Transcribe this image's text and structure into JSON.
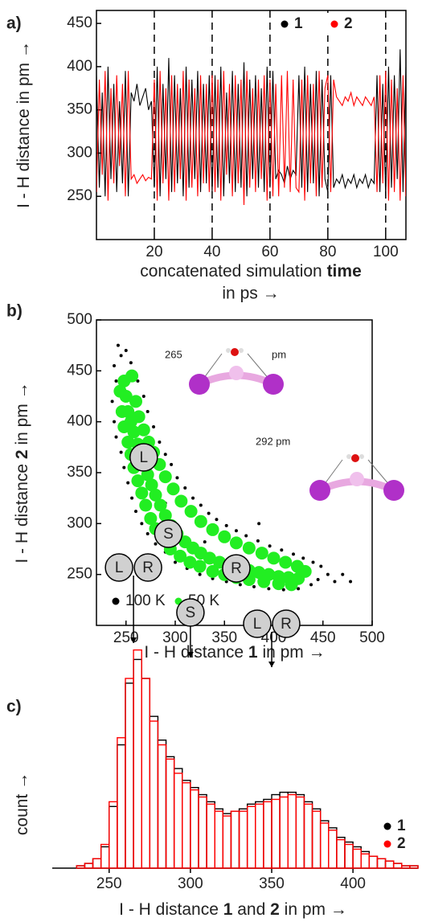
{
  "chart_data": [
    {
      "type": "line",
      "panel_label": "a)",
      "ylabel": [
        {
          "text": "I - H distance in pm →",
          "bold": false
        }
      ],
      "xlabel": [
        {
          "text": "concatenated simulation ",
          "bold": false
        },
        {
          "text": "time",
          "bold": true
        }
      ],
      "xlabel2": "in ps →",
      "xlim": [
        0,
        107
      ],
      "ylim": [
        200,
        465
      ],
      "xticks": [
        20,
        40,
        60,
        80,
        100
      ],
      "yticks": [
        250,
        300,
        350,
        400,
        450
      ],
      "vlines": [
        20,
        40,
        60,
        80,
        100
      ],
      "frame": true,
      "x": [
        0,
        1,
        2,
        3,
        4,
        5,
        6,
        7,
        8,
        9,
        10,
        11,
        12,
        13,
        14,
        15,
        16,
        17,
        18,
        19,
        20,
        21,
        22,
        23,
        24,
        25,
        26,
        27,
        28,
        29,
        30,
        31,
        32,
        33,
        34,
        35,
        36,
        37,
        38,
        39,
        40,
        41,
        42,
        43,
        44,
        45,
        46,
        47,
        48,
        49,
        50,
        51,
        52,
        53,
        54,
        55,
        56,
        57,
        58,
        59,
        60,
        61,
        62,
        63,
        64,
        65,
        66,
        67,
        68,
        69,
        70,
        71,
        72,
        73,
        74,
        75,
        76,
        77,
        78,
        79,
        80,
        81,
        82,
        83,
        84,
        85,
        86,
        87,
        88,
        89,
        90,
        91,
        92,
        93,
        94,
        95,
        96,
        97,
        98,
        99,
        100,
        101,
        102,
        103,
        104,
        105,
        106,
        107
      ],
      "series": [
        {
          "name": "1",
          "color": "#000000",
          "values": [
            390,
            260,
            370,
            250,
            400,
            270,
            380,
            255,
            360,
            265,
            395,
            250,
            370,
            360,
            380,
            355,
            365,
            375,
            350,
            360,
            260,
            400,
            250,
            380,
            270,
            410,
            255,
            390,
            265,
            375,
            250,
            400,
            260,
            385,
            270,
            395,
            255,
            380,
            265,
            390,
            255,
            390,
            260,
            400,
            250,
            370,
            265,
            395,
            255,
            380,
            260,
            405,
            250,
            385,
            270,
            390,
            260,
            375,
            255,
            400,
            260,
            395,
            270,
            280,
            275,
            265,
            285,
            270,
            280,
            275,
            390,
            260,
            400,
            255,
            380,
            265,
            395,
            250,
            385,
            270,
            255,
            390,
            260,
            270,
            265,
            275,
            260,
            270,
            265,
            275,
            260,
            270,
            265,
            275,
            260,
            270,
            265,
            390,
            255,
            380,
            250,
            400,
            260,
            390,
            270,
            420,
            255,
            400
          ]
        },
        {
          "name": "2",
          "color": "#ff0000",
          "values": [
            255,
            385,
            275,
            395,
            245,
            375,
            265,
            390,
            285,
            380,
            250,
            395,
            270,
            275,
            265,
            270,
            275,
            268,
            272,
            270,
            385,
            245,
            395,
            265,
            375,
            245,
            390,
            255,
            380,
            270,
            395,
            245,
            385,
            260,
            375,
            250,
            390,
            265,
            380,
            255,
            390,
            255,
            385,
            245,
            395,
            275,
            380,
            250,
            390,
            265,
            385,
            240,
            395,
            260,
            375,
            255,
            385,
            270,
            390,
            245,
            385,
            250,
            380,
            250,
            390,
            260,
            395,
            255,
            385,
            260,
            255,
            385,
            245,
            390,
            265,
            380,
            250,
            395,
            260,
            375,
            390,
            255,
            385,
            365,
            360,
            355,
            365,
            360,
            370,
            355,
            365,
            360,
            355,
            365,
            360,
            355,
            365,
            255,
            390,
            265,
            395,
            245,
            385,
            255,
            375,
            245,
            390,
            250
          ]
        }
      ]
    },
    {
      "type": "scatter",
      "panel_label": "b)",
      "ylabel": [
        {
          "text": "I - H distance ",
          "bold": false
        },
        {
          "text": "2",
          "bold": true
        },
        {
          "text": " in pm →",
          "bold": false
        }
      ],
      "xlabel": [
        {
          "text": "I - H distance ",
          "bold": false
        },
        {
          "text": "1",
          "bold": true
        },
        {
          "text": " in pm →",
          "bold": false
        }
      ],
      "xlim": [
        220,
        500
      ],
      "ylim": [
        200,
        500
      ],
      "xticks": [
        250,
        300,
        350,
        400,
        450,
        500
      ],
      "yticks": [
        250,
        300,
        350,
        400,
        450,
        500
      ],
      "frame": true,
      "annotations": [
        "265",
        "pm",
        "292 pm"
      ],
      "state_labels": [
        {
          "text": "L",
          "x": 268,
          "y": 365
        },
        {
          "text": "S",
          "x": 293,
          "y": 290
        },
        {
          "text": "R",
          "x": 362,
          "y": 256
        }
      ],
      "series": [
        {
          "name": "100 K",
          "color": "#000000",
          "x": [
            242,
            245,
            250,
            238,
            255,
            240,
            262,
            236,
            268,
            238,
            272,
            240,
            278,
            245,
            284,
            248,
            290,
            252,
            296,
            256,
            302,
            260,
            310,
            266,
            318,
            272,
            326,
            280,
            334,
            290,
            342,
            300,
            352,
            312,
            362,
            325,
            372,
            338,
            384,
            352,
            396,
            366,
            408,
            380,
            420,
            395,
            430,
            410,
            440,
            425,
            448,
            438,
            455,
            445,
            462,
            470,
            478,
            290,
            330,
            385
          ],
          "y": [
            475,
            465,
            470,
            455,
            458,
            440,
            440,
            420,
            425,
            400,
            410,
            385,
            395,
            370,
            380,
            355,
            368,
            340,
            358,
            325,
            345,
            312,
            335,
            300,
            325,
            290,
            318,
            280,
            310,
            272,
            304,
            262,
            298,
            256,
            293,
            250,
            288,
            246,
            283,
            243,
            278,
            240,
            274,
            238,
            270,
            236,
            266,
            235,
            262,
            236,
            258,
            240,
            250,
            245,
            243,
            250,
            243,
            320,
            282,
            300
          ]
        },
        {
          "name": "50 K",
          "color": "#22ee22",
          "x": [
            248,
            250,
            252,
            255,
            258,
            262,
            265,
            268,
            272,
            276,
            280,
            285,
            290,
            296,
            302,
            310,
            318,
            326,
            335,
            345,
            355,
            365,
            375,
            385,
            395,
            405,
            415,
            425,
            244,
            246,
            248,
            252,
            255,
            258,
            262,
            266,
            270,
            275,
            280,
            287,
            295,
            305,
            315,
            325,
            338,
            350,
            362,
            375,
            390,
            405,
            418,
            256,
            260,
            263,
            268,
            273,
            278,
            284,
            290,
            298,
            306,
            316,
            326,
            338,
            350,
            362,
            375,
            388,
            400,
            412,
            424,
            432
          ],
          "y": [
            440,
            425,
            410,
            400,
            390,
            378,
            368,
            358,
            348,
            338,
            328,
            318,
            308,
            298,
            290,
            282,
            276,
            271,
            266,
            262,
            259,
            256,
            254,
            252,
            250,
            248,
            247,
            246,
            430,
            410,
            395,
            380,
            368,
            355,
            342,
            330,
            318,
            305,
            295,
            285,
            275,
            268,
            262,
            258,
            253,
            250,
            247,
            245,
            243,
            241,
            240,
            445,
            420,
            405,
            392,
            380,
            370,
            358,
            346,
            334,
            322,
            312,
            302,
            294,
            287,
            281,
            276,
            271,
            266,
            262,
            258,
            253
          ]
        }
      ]
    },
    {
      "type": "histogram",
      "panel_label": "c)",
      "ylabel": [
        {
          "text": "count →",
          "bold": false
        }
      ],
      "xlabel": [
        {
          "text": "I - H distance ",
          "bold": false
        },
        {
          "text": "1",
          "bold": true
        },
        {
          "text": " and ",
          "bold": false
        },
        {
          "text": "2",
          "bold": true
        },
        {
          "text": " in pm →",
          "bold": false
        }
      ],
      "xlim": [
        215,
        440
      ],
      "ylim": [
        0,
        100
      ],
      "xticks": [
        250,
        300,
        350,
        400
      ],
      "frame": false,
      "markers": [
        {
          "labels": [
            "L",
            "R"
          ],
          "x": 265
        },
        {
          "labels": [
            "S"
          ],
          "x": 300
        },
        {
          "labels": [
            "L",
            "R"
          ],
          "x": 350
        }
      ],
      "bins": [
        230,
        235,
        240,
        245,
        250,
        255,
        260,
        265,
        270,
        275,
        280,
        285,
        290,
        295,
        300,
        305,
        310,
        315,
        320,
        325,
        330,
        335,
        340,
        345,
        350,
        355,
        360,
        365,
        370,
        375,
        380,
        385,
        390,
        395,
        400,
        405,
        410,
        415,
        420,
        425,
        430,
        435,
        440
      ],
      "series": [
        {
          "name": "1",
          "color": "#000000",
          "values": [
            1,
            2,
            4,
            9,
            26,
            52,
            78,
            88,
            80,
            64,
            54,
            47,
            42,
            37,
            34,
            31,
            28,
            25,
            23,
            24,
            25,
            27,
            28,
            29,
            31,
            32,
            32,
            31,
            28,
            25,
            20,
            17,
            13,
            11,
            9,
            7,
            5,
            4,
            3,
            2,
            1,
            1
          ]
        },
        {
          "name": "2",
          "color": "#ff0000",
          "values": [
            1,
            2,
            4,
            10,
            28,
            55,
            80,
            92,
            80,
            62,
            52,
            46,
            40,
            36,
            33,
            30,
            27,
            24,
            22,
            24,
            24,
            26,
            27,
            28,
            29,
            30,
            31,
            30,
            27,
            24,
            19,
            16,
            12,
            10,
            8,
            6,
            5,
            4,
            3,
            2,
            1,
            1
          ]
        }
      ]
    }
  ]
}
